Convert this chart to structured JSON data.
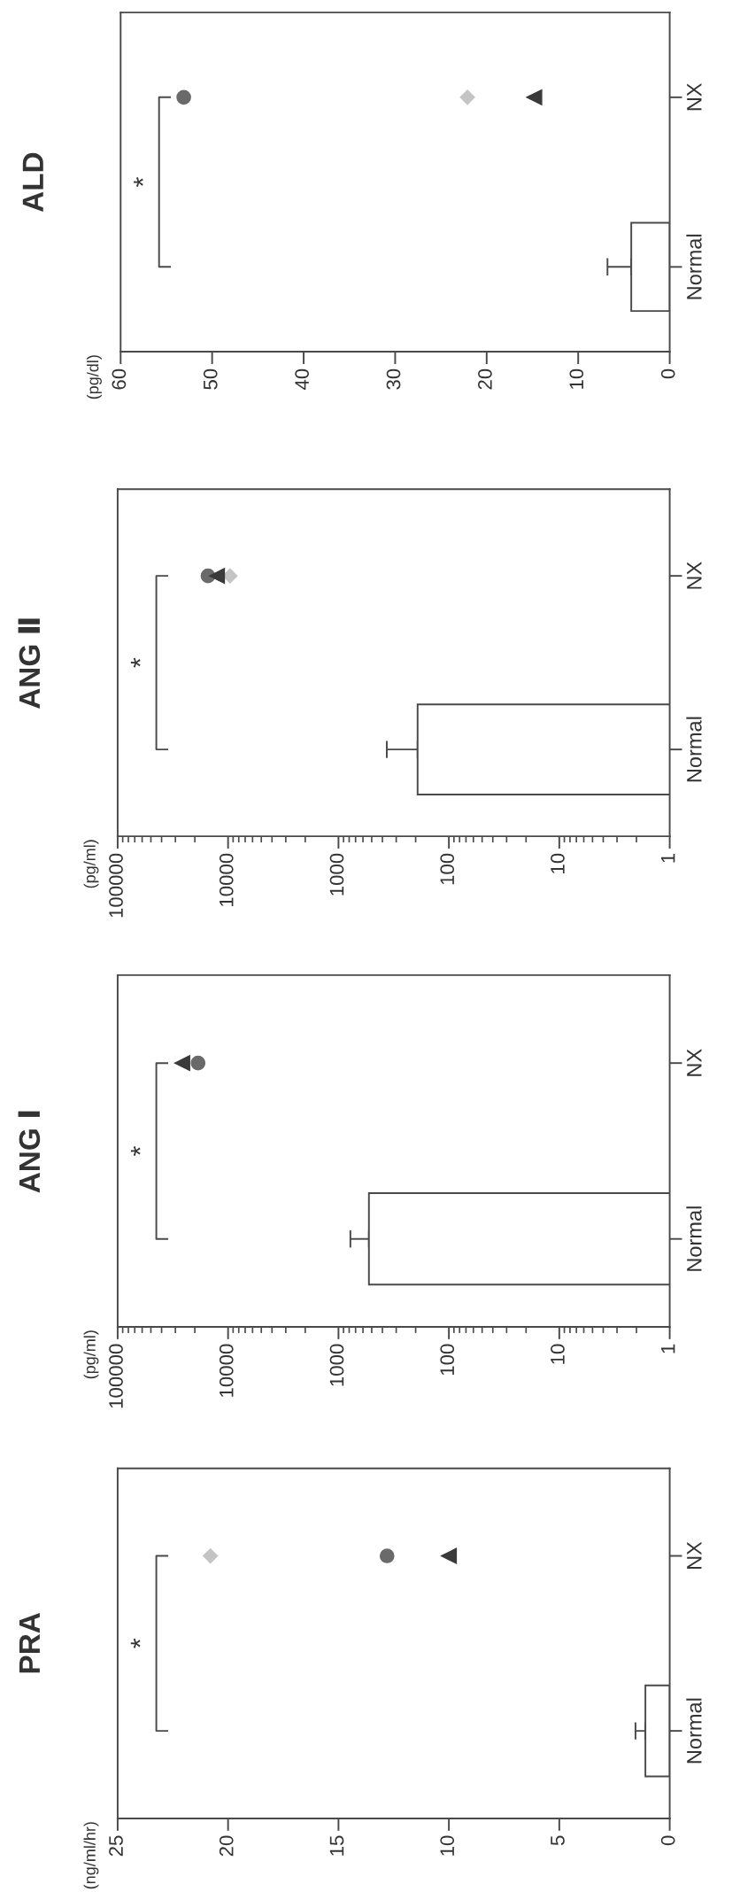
{
  "chart_data": [
    {
      "type": "bar",
      "title": "PRA",
      "orientation": "horizontal",
      "categories": [
        "NX",
        "Normal"
      ],
      "xlim": [
        25,
        0
      ],
      "xticks": [
        25,
        20,
        15,
        10,
        5,
        0
      ],
      "annotations": [
        "(ng/ml/hr)",
        "*"
      ],
      "series": [
        {
          "color": "#ffffff",
          "values": [
            null,
            1.1
          ],
          "errors": [
            null,
            [
              1.1,
              1.55
            ]
          ]
        },
        {
          "type": "scatter",
          "marker": "diamond",
          "color": "#c4c4c4",
          "values": [
            20.8,
            null
          ]
        },
        {
          "type": "scatter",
          "marker": "circle",
          "color": "#6a6a6a",
          "values": [
            12.8,
            null
          ]
        },
        {
          "type": "scatter",
          "marker": "triangle",
          "color": "#3a3a3a",
          "values": [
            10.0,
            null
          ]
        }
      ]
    },
    {
      "type": "bar",
      "title": "ANG Ⅰ",
      "orientation": "horizontal",
      "log": "x",
      "categories": [
        "NX",
        "Normal"
      ],
      "xlim": [
        100000,
        1
      ],
      "xticks": [
        100000,
        10000,
        1000,
        100,
        10,
        1
      ],
      "annotations": [
        "(pg/ml)",
        "*"
      ],
      "series": [
        {
          "color": "#ffffff",
          "values": [
            null,
            530
          ],
          "errors": [
            null,
            [
              530,
              780
            ]
          ]
        },
        {
          "type": "scatter",
          "marker": "circle",
          "color": "#6a6a6a",
          "values": [
            18700,
            null
          ]
        },
        {
          "type": "scatter",
          "marker": "triangle",
          "color": "#3a3a3a",
          "values": [
            26000,
            null
          ]
        }
      ]
    },
    {
      "type": "bar",
      "title": "ANG Ⅱ",
      "orientation": "horizontal",
      "log": "x",
      "categories": [
        "NX",
        "Normal"
      ],
      "xlim": [
        100000,
        1
      ],
      "xticks": [
        100000,
        10000,
        1000,
        100,
        10,
        1
      ],
      "annotations": [
        "(pg/ml)",
        "*"
      ],
      "series": [
        {
          "color": "#ffffff",
          "values": [
            null,
            192
          ],
          "errors": [
            null,
            [
              192,
              365
            ]
          ]
        },
        {
          "type": "scatter",
          "marker": "diamond",
          "color": "#c4c4c4",
          "values": [
            9600,
            null
          ]
        },
        {
          "type": "scatter",
          "marker": "circle",
          "color": "#6a6a6a",
          "values": [
            15200,
            null
          ]
        },
        {
          "type": "scatter",
          "marker": "triangle",
          "color": "#3a3a3a",
          "values": [
            12600,
            null
          ]
        }
      ]
    },
    {
      "type": "bar",
      "title": "ALD",
      "orientation": "horizontal",
      "categories": [
        "NX",
        "Normal"
      ],
      "xlim": [
        60,
        0
      ],
      "xticks": [
        60,
        50,
        40,
        30,
        20,
        10,
        0
      ],
      "annotations": [
        "(pg/dl)",
        "*"
      ],
      "series": [
        {
          "color": "#ffffff",
          "values": [
            null,
            4.2
          ],
          "errors": [
            null,
            [
              4.2,
              6.8
            ]
          ]
        },
        {
          "type": "scatter",
          "marker": "diamond",
          "color": "#c4c4c4",
          "values": [
            22.1,
            null
          ]
        },
        {
          "type": "scatter",
          "marker": "circle",
          "color": "#6a6a6a",
          "values": [
            53.1,
            null
          ]
        },
        {
          "type": "scatter",
          "marker": "triangle",
          "color": "#3a3a3a",
          "values": [
            14.8,
            null
          ]
        }
      ]
    }
  ]
}
